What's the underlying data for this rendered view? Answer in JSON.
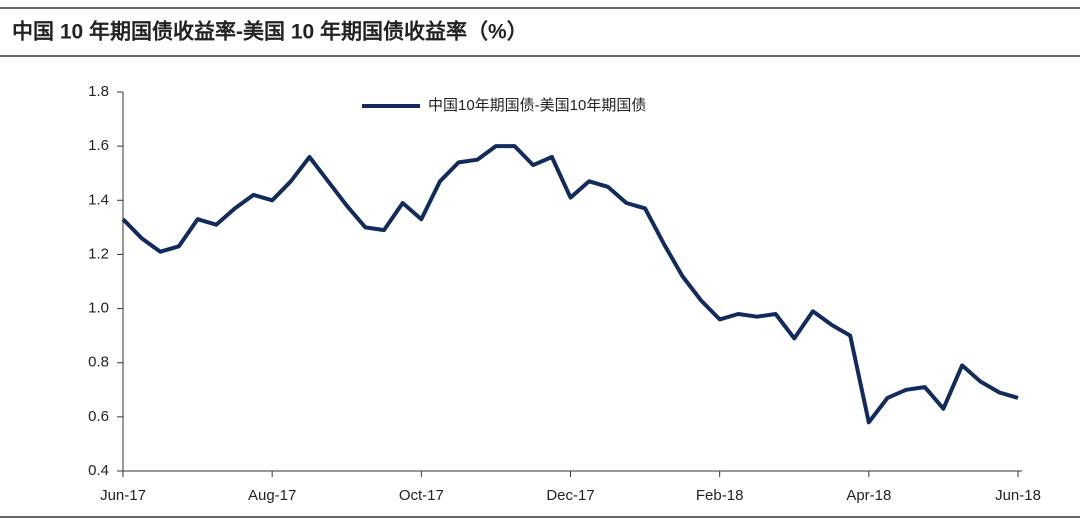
{
  "chart_data": {
    "type": "line",
    "title": "中国 10 年期国债收益率-美国 10 年期国债收益率（%）",
    "categories": [
      "Jun-17",
      null,
      null,
      null,
      null,
      null,
      null,
      null,
      "Aug-17",
      null,
      null,
      null,
      null,
      null,
      null,
      null,
      "Oct-17",
      null,
      null,
      null,
      null,
      null,
      null,
      null,
      "Dec-17",
      null,
      null,
      null,
      null,
      null,
      null,
      null,
      "Feb-18",
      null,
      null,
      null,
      null,
      null,
      null,
      null,
      "Apr-18",
      null,
      null,
      null,
      null,
      null,
      null,
      null,
      "Jun-18"
    ],
    "series": [
      {
        "name": "中国10年期国债-美国10年期国债",
        "color": "#112b5c",
        "values": [
          1.33,
          1.26,
          1.21,
          1.23,
          1.33,
          1.31,
          1.37,
          1.42,
          1.4,
          1.47,
          1.56,
          1.47,
          1.38,
          1.3,
          1.29,
          1.39,
          1.33,
          1.47,
          1.54,
          1.55,
          1.6,
          1.6,
          1.53,
          1.56,
          1.41,
          1.47,
          1.45,
          1.39,
          1.37,
          1.24,
          1.12,
          1.03,
          0.96,
          0.98,
          0.97,
          0.98,
          0.89,
          0.99,
          0.94,
          0.9,
          0.58,
          0.67,
          0.7,
          0.71,
          0.63,
          0.79,
          0.73,
          0.69,
          0.67
        ]
      }
    ],
    "ylim": [
      0.4,
      1.8
    ],
    "yticks": [
      0.4,
      0.6,
      0.8,
      {
        "value": 1,
        "label": "1.0"
      },
      1.2,
      1.4,
      1.6,
      1.8
    ],
    "legend": "top"
  }
}
